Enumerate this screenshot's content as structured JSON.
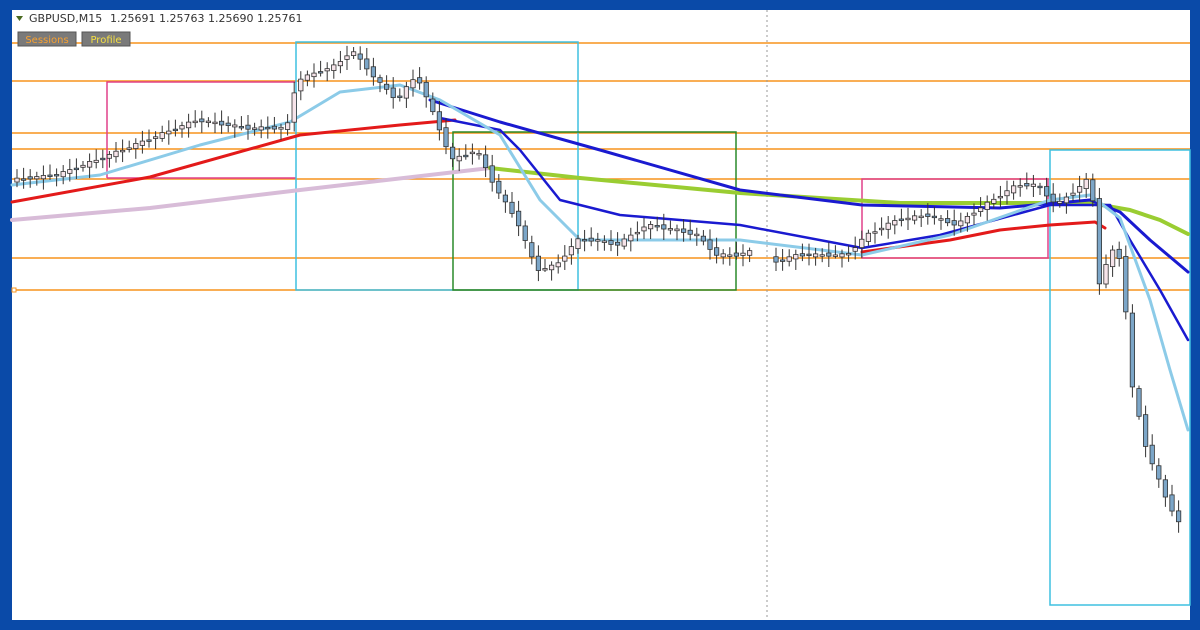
{
  "header": {
    "symbol": "GBPUSD,M15",
    "quote": "1.25691 1.25763 1.25690 1.25761"
  },
  "buttons": [
    "Sessions",
    "Profile"
  ]
}
